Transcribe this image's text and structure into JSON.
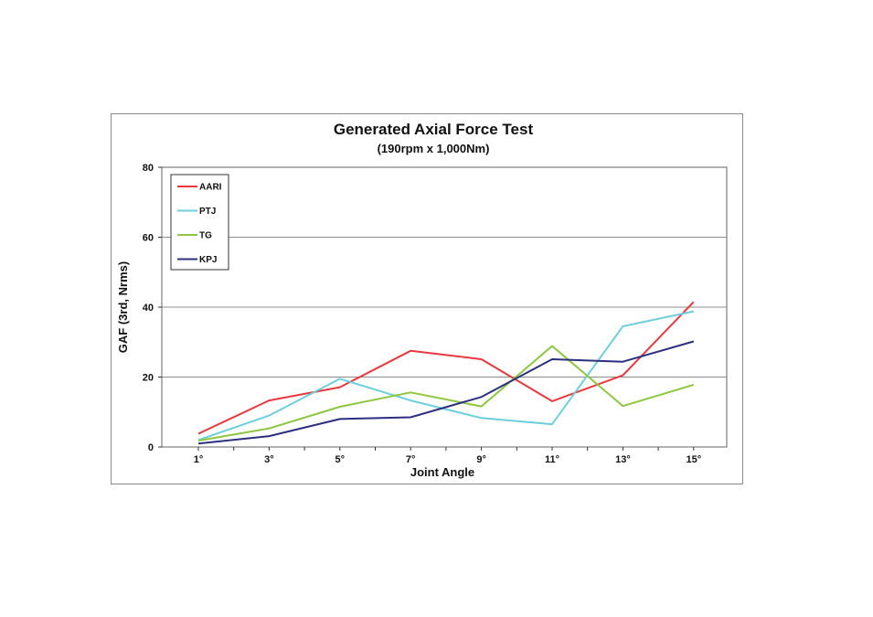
{
  "chart_data": {
    "type": "line",
    "title": "Generated Axial Force Test",
    "subtitle": "(190rpm x 1,000Nm)",
    "xlabel": "Joint Angle",
    "ylabel": "GAF (3rd, Nrms)",
    "categories": [
      "1°",
      "3°",
      "5°",
      "7°",
      "9°",
      "11°",
      "13°",
      "15°"
    ],
    "ylim": [
      0,
      80
    ],
    "yticks": [
      0,
      20,
      40,
      60,
      80
    ],
    "grid": true,
    "legend_position": "top-left",
    "series": [
      {
        "name": "AARI",
        "color": "#e8383d",
        "values": [
          3.8,
          13.3,
          17.1,
          27.5,
          25.1,
          13.1,
          20.5,
          41.5
        ]
      },
      {
        "name": "PTJ",
        "color": "#6ecfdc",
        "values": [
          2.0,
          9.0,
          19.5,
          13.3,
          8.3,
          6.5,
          34.5,
          38.8
        ]
      },
      {
        "name": "TG",
        "color": "#8dc63f",
        "values": [
          1.8,
          5.3,
          11.5,
          15.6,
          11.6,
          28.9,
          11.7,
          17.8
        ]
      },
      {
        "name": "KPJ",
        "color": "#2b2f7e",
        "values": [
          1.0,
          3.1,
          8.0,
          8.5,
          14.3,
          25.1,
          24.4,
          30.2
        ]
      }
    ]
  }
}
